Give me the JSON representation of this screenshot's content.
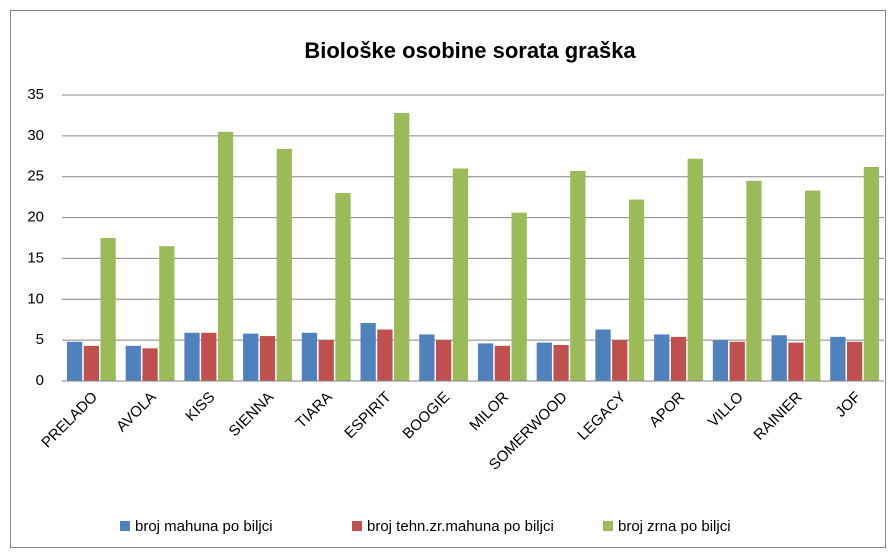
{
  "chart_data": {
    "type": "bar",
    "title": "Biološke osobine sorata graška",
    "categories": [
      "PRELADO",
      "AVOLA",
      "KISS",
      "SIENNA",
      "TIARA",
      "ESPIRIT",
      "BOOGIE",
      "MILOR",
      "SOMERWOOD",
      "LEGACY",
      "APOR",
      "VILLO",
      "RAINIER",
      "JOF"
    ],
    "series": [
      {
        "name": "broj mahuna po biljci",
        "color": "#4f81bd",
        "values": [
          4.8,
          4.3,
          5.9,
          5.8,
          5.9,
          7.1,
          5.7,
          4.6,
          4.7,
          6.3,
          5.7,
          5.0,
          5.6,
          5.4
        ]
      },
      {
        "name": "broj tehn.zr.mahuna po biljci",
        "color": "#c0504d",
        "values": [
          4.3,
          4.0,
          5.9,
          5.5,
          5.0,
          6.3,
          5.0,
          4.3,
          4.4,
          5.0,
          5.4,
          4.8,
          4.7,
          4.8
        ]
      },
      {
        "name": "broj zrna po biljci",
        "color": "#9bbb59",
        "values": [
          17.5,
          16.5,
          30.5,
          28.4,
          23.0,
          32.8,
          26.0,
          20.6,
          25.7,
          22.2,
          27.2,
          24.5,
          23.3,
          26.2
        ]
      }
    ],
    "ylim": [
      0,
      35
    ],
    "yticks": [
      0,
      5,
      10,
      15,
      20,
      25,
      30,
      35
    ],
    "grid": true,
    "legend": "bottom"
  }
}
